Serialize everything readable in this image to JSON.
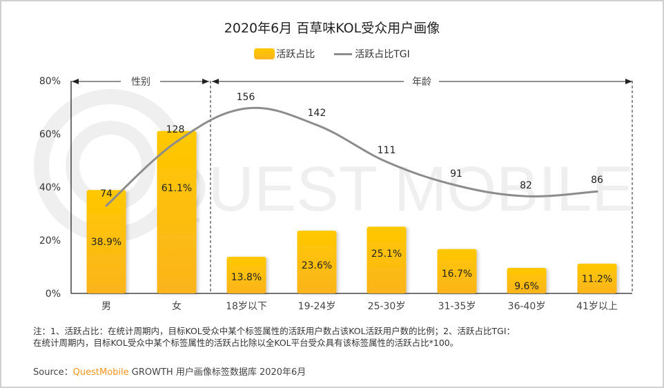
{
  "title": "2020年6月 百草味KOL受众用户画像",
  "legend": {
    "bar_label": "活跃占比",
    "line_label": "活跃占比TGI"
  },
  "colors": {
    "bar_top": "#ffc800",
    "bar_bottom": "#fbb41c",
    "line": "#8c8c8c",
    "brand": "#f7941d"
  },
  "groups": [
    {
      "label": "性别",
      "categories": [
        "男",
        "女"
      ]
    },
    {
      "label": "年龄",
      "categories": [
        "18岁以下",
        "19-24岁",
        "25-30岁",
        "31-35岁",
        "36-40岁",
        "41岁以上"
      ]
    }
  ],
  "watermark": "QUEST MOBILE",
  "chart_data": {
    "type": "bar",
    "title": "2020年6月 百草味KOL受众用户画像",
    "categories": [
      "男",
      "女",
      "18岁以下",
      "19-24岁",
      "25-30岁",
      "31-35岁",
      "36-40岁",
      "41岁以上"
    ],
    "series": [
      {
        "name": "活跃占比",
        "type": "bar",
        "values": [
          38.9,
          61.1,
          13.8,
          23.6,
          25.1,
          16.7,
          9.6,
          11.2
        ],
        "labels": [
          "38.9%",
          "61.1%",
          "13.8%",
          "23.6%",
          "25.1%",
          "16.7%",
          "9.6%",
          "11.2%"
        ]
      },
      {
        "name": "活跃占比TGI",
        "type": "line",
        "values": [
          74,
          128,
          156,
          142,
          111,
          91,
          82,
          86
        ],
        "labels": [
          "74",
          "128",
          "156",
          "142",
          "111",
          "91",
          "82",
          "86"
        ]
      }
    ],
    "yticks": [
      "0%",
      "20%",
      "40%",
      "60%",
      "80%"
    ],
    "ylim": [
      0,
      80
    ],
    "xlabel": "",
    "ylabel": "",
    "grid": false,
    "legend_position": "top-center"
  },
  "notes": {
    "line1": "注：1、活跃占比：在统计周期内，目标KOL受众中某个标签属性的活跃用户数占该KOL活跃用户数的比例；2、活跃占比TGI：",
    "line2": "在统计周期内，目标KOL受众中某个标签属性的活跃占比除以全KOL平台受众具有该标签属性的活跃占比*100。"
  },
  "source": {
    "prefix": "Source：",
    "brand": "QuestMobile",
    "suffix": " GROWTH 用户画像标签数据库 2020年6月"
  }
}
